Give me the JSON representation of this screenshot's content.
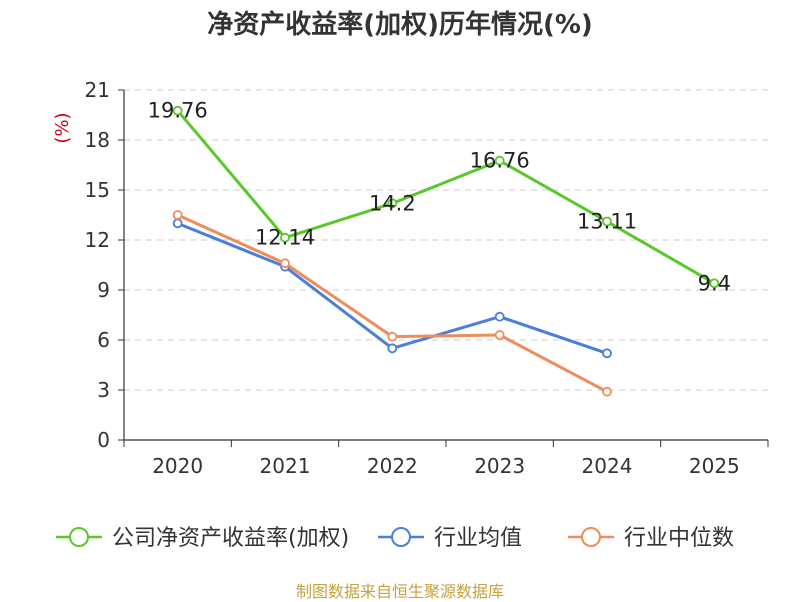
{
  "chart_data": {
    "type": "line",
    "title": "净资产收益率(加权)历年情况(%)",
    "ylabel": "(%)",
    "xlabel": "",
    "categories": [
      "2020",
      "2021",
      "2022",
      "2023",
      "2024",
      "2025"
    ],
    "ylim": [
      0,
      21
    ],
    "yticks": [
      0,
      3,
      6,
      9,
      12,
      15,
      18,
      21
    ],
    "grid": "horizontal dashed",
    "legend_position": "bottom",
    "series": [
      {
        "name": "公司净资产收益率(加权)",
        "color": "#5ac72a",
        "values": [
          19.76,
          12.14,
          14.2,
          16.76,
          13.11,
          9.4
        ],
        "labels": [
          "19.76",
          "12.14",
          "14.2",
          "16.76",
          "13.11",
          "9.4"
        ]
      },
      {
        "name": "行业均值",
        "color": "#4a7fd9",
        "values": [
          13.0,
          10.4,
          5.5,
          7.4,
          5.2,
          null
        ]
      },
      {
        "name": "行业中位数",
        "color": "#f08c5a",
        "values": [
          13.5,
          10.6,
          6.2,
          6.3,
          2.9,
          null
        ]
      }
    ]
  },
  "source": "制图数据来自恒生聚源数据库"
}
